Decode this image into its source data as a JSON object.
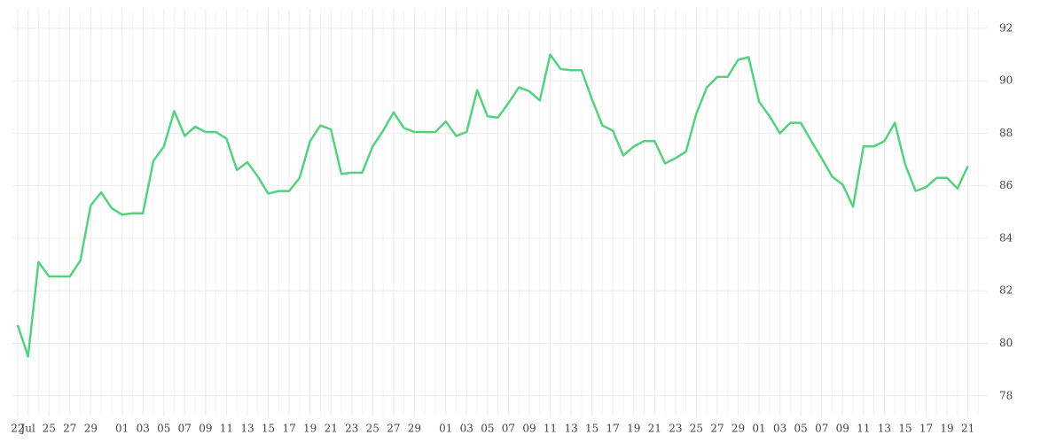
{
  "chart_data": {
    "type": "line",
    "x": [
      0,
      1,
      2,
      3,
      4,
      5,
      6,
      7,
      8,
      9,
      10,
      11,
      12,
      13,
      14,
      15,
      16,
      17,
      18,
      19,
      20,
      21,
      22,
      23,
      24,
      25,
      26,
      27,
      28,
      29,
      30,
      31,
      32,
      33,
      34,
      35,
      36,
      37,
      38,
      39,
      40,
      41,
      42,
      43,
      44,
      45,
      46,
      47,
      48,
      49,
      50,
      51,
      52,
      53,
      54,
      55,
      56,
      57,
      58,
      59,
      60,
      61,
      62,
      63,
      64,
      65,
      66,
      67,
      68,
      69,
      70,
      71,
      72,
      73,
      74,
      75,
      76,
      77,
      78,
      79,
      80,
      81,
      82,
      83,
      84,
      85,
      86,
      87,
      88,
      89,
      90,
      91
    ],
    "series": [
      {
        "color": "#55d17f",
        "values": [
          80.7,
          79.5,
          83.1,
          82.55,
          82.55,
          82.55,
          83.15,
          85.25,
          85.75,
          85.15,
          84.9,
          84.95,
          84.95,
          86.95,
          87.5,
          88.85,
          87.9,
          88.25,
          88.05,
          88.05,
          87.8,
          86.6,
          86.9,
          86.35,
          85.7,
          85.8,
          85.8,
          86.3,
          87.7,
          88.3,
          88.15,
          86.45,
          86.5,
          86.5,
          87.5,
          88.1,
          88.8,
          88.2,
          88.05,
          88.05,
          88.05,
          88.45,
          87.9,
          88.05,
          89.65,
          88.65,
          88.6,
          89.15,
          89.75,
          89.6,
          89.25,
          91.0,
          90.45,
          90.4,
          90.4,
          89.3,
          88.3,
          88.1,
          87.15,
          87.5,
          87.7,
          87.7,
          86.85,
          87.05,
          87.3,
          88.75,
          89.75,
          90.15,
          90.15,
          90.8,
          90.9,
          89.2,
          88.65,
          88.0,
          88.4,
          88.4,
          87.7,
          87.05,
          86.35,
          86.05,
          85.2,
          87.5,
          87.5,
          87.7,
          88.4,
          86.8,
          85.8,
          85.95,
          86.3,
          86.3,
          85.9,
          86.75
        ]
      }
    ],
    "xlim": [
      -0.5,
      92.9
    ],
    "xticks": [
      {
        "value": 0,
        "label": "22"
      },
      {
        "value": 1,
        "label": "Jul"
      },
      {
        "value": 3,
        "label": "25"
      },
      {
        "value": 5,
        "label": "27"
      },
      {
        "value": 7,
        "label": "29"
      },
      {
        "value": 10,
        "label": "01"
      },
      {
        "value": 12,
        "label": "03"
      },
      {
        "value": 14,
        "label": "05"
      },
      {
        "value": 16,
        "label": "07"
      },
      {
        "value": 18,
        "label": "09"
      },
      {
        "value": 20,
        "label": "11"
      },
      {
        "value": 22,
        "label": "13"
      },
      {
        "value": 24,
        "label": "15"
      },
      {
        "value": 26,
        "label": "17"
      },
      {
        "value": 28,
        "label": "19"
      },
      {
        "value": 30,
        "label": "21"
      },
      {
        "value": 32,
        "label": "23"
      },
      {
        "value": 34,
        "label": "25"
      },
      {
        "value": 36,
        "label": "27"
      },
      {
        "value": 38,
        "label": "29"
      },
      {
        "value": 41,
        "label": "01"
      },
      {
        "value": 43,
        "label": "03"
      },
      {
        "value": 45,
        "label": "05"
      },
      {
        "value": 47,
        "label": "07"
      },
      {
        "value": 49,
        "label": "09"
      },
      {
        "value": 51,
        "label": "11"
      },
      {
        "value": 53,
        "label": "13"
      },
      {
        "value": 55,
        "label": "15"
      },
      {
        "value": 57,
        "label": "17"
      },
      {
        "value": 59,
        "label": "19"
      },
      {
        "value": 61,
        "label": "21"
      },
      {
        "value": 63,
        "label": "23"
      },
      {
        "value": 65,
        "label": "25"
      },
      {
        "value": 67,
        "label": "27"
      },
      {
        "value": 69,
        "label": "29"
      },
      {
        "value": 71,
        "label": "01"
      },
      {
        "value": 73,
        "label": "03"
      },
      {
        "value": 75,
        "label": "05"
      },
      {
        "value": 77,
        "label": "07"
      },
      {
        "value": 79,
        "label": "09"
      },
      {
        "value": 81,
        "label": "11"
      },
      {
        "value": 83,
        "label": "13"
      },
      {
        "value": 85,
        "label": "15"
      },
      {
        "value": 87,
        "label": "17"
      },
      {
        "value": 89,
        "label": "19"
      },
      {
        "value": 91,
        "label": "21"
      }
    ],
    "ylim": [
      77.25,
      92.74
    ],
    "yticks": [
      78,
      80,
      82,
      84,
      86,
      88,
      90,
      92
    ],
    "grid": true
  }
}
